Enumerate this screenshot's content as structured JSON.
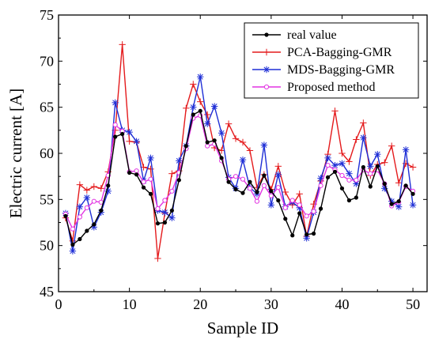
{
  "chart_data": {
    "type": "line",
    "xlabel": "Sample ID",
    "ylabel": "Electric current [A]",
    "xlim": [
      0,
      52
    ],
    "ylim": [
      45,
      75
    ],
    "xticks": [
      0,
      10,
      20,
      30,
      40,
      50
    ],
    "yticks": [
      45,
      50,
      55,
      60,
      65,
      70,
      75
    ],
    "grid": false,
    "legend_position": "top-right",
    "x": [
      1,
      2,
      3,
      4,
      5,
      6,
      7,
      8,
      9,
      10,
      11,
      12,
      13,
      14,
      15,
      16,
      17,
      18,
      19,
      20,
      21,
      22,
      23,
      24,
      25,
      26,
      27,
      28,
      29,
      30,
      31,
      32,
      33,
      34,
      35,
      36,
      37,
      38,
      39,
      40,
      41,
      42,
      43,
      44,
      45,
      46,
      47,
      48,
      49,
      50
    ],
    "series": [
      {
        "name": "real value",
        "color": "#000000",
        "marker": "dot",
        "values": [
          53.2,
          50.1,
          50.7,
          51.6,
          52.3,
          53.8,
          56.5,
          61.8,
          62.1,
          57.9,
          57.7,
          56.3,
          55.6,
          52.4,
          52.5,
          53.8,
          57.1,
          60.8,
          64.2,
          64.6,
          61.2,
          61.4,
          59.5,
          56.9,
          56.1,
          55.7,
          56.9,
          55.8,
          57.6,
          55.9,
          54.9,
          52.9,
          51.1,
          53.5,
          51.2,
          51.3,
          54.0,
          57.4,
          58.0,
          56.2,
          54.9,
          55.2,
          58.5,
          56.4,
          58.6,
          56.7,
          54.5,
          54.8,
          56.5,
          55.6
        ]
      },
      {
        "name": "PCA-Bagging-GMR",
        "color": "#e41a1c",
        "marker": "plus",
        "values": [
          53.0,
          50.5,
          56.6,
          56.0,
          56.4,
          56.2,
          58.0,
          62.5,
          71.8,
          61.3,
          61.2,
          58.5,
          58.3,
          48.6,
          53.5,
          57.8,
          58.1,
          64.9,
          67.5,
          65.6,
          64.2,
          60.6,
          60.3,
          63.2,
          61.6,
          61.2,
          60.3,
          56.3,
          57.7,
          56.1,
          58.6,
          55.8,
          54.4,
          55.6,
          51.0,
          54.5,
          57.0,
          59.9,
          64.6,
          60.0,
          59.1,
          61.5,
          63.3,
          57.6,
          58.8,
          59.0,
          60.8,
          56.8,
          58.9,
          58.5
        ]
      },
      {
        "name": "MDS-Bagging-GMR",
        "color": "#1f2fd6",
        "marker": "star",
        "values": [
          53.5,
          49.4,
          54.2,
          55.2,
          52.0,
          53.6,
          55.9,
          65.5,
          62.5,
          62.3,
          61.3,
          57.0,
          59.5,
          53.8,
          53.6,
          53.0,
          59.2,
          60.8,
          65.0,
          68.3,
          63.2,
          65.1,
          62.2,
          57.4,
          56.2,
          59.3,
          56.3,
          55.6,
          60.9,
          54.4,
          57.7,
          54.2,
          54.7,
          54.1,
          50.8,
          53.6,
          57.3,
          59.5,
          58.7,
          58.9,
          57.8,
          56.7,
          61.7,
          58.6,
          59.9,
          56.2,
          54.8,
          54.2,
          60.4,
          54.4
        ]
      },
      {
        "name": "Proposed method",
        "color": "#e234e2",
        "marker": "circle",
        "values": [
          53.4,
          51.8,
          53.1,
          54.1,
          54.8,
          54.7,
          57.6,
          63.1,
          62.4,
          58.0,
          58.1,
          56.9,
          57.2,
          54.0,
          54.9,
          55.9,
          57.9,
          60.5,
          63.8,
          64.1,
          60.8,
          61.0,
          59.2,
          57.2,
          57.5,
          57.2,
          56.2,
          54.8,
          56.5,
          55.4,
          56.3,
          54.1,
          54.9,
          54.4,
          53.2,
          53.7,
          56.5,
          58.7,
          58.2,
          57.6,
          57.1,
          57.1,
          58.2,
          57.8,
          58.2,
          56.7,
          54.3,
          54.7,
          56.4,
          55.9
        ]
      }
    ]
  }
}
